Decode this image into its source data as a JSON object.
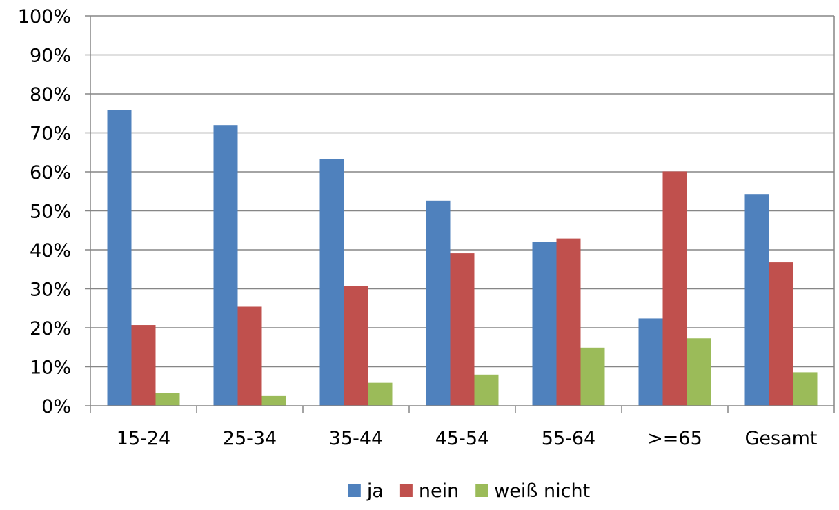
{
  "chart_data": {
    "type": "bar",
    "title": "",
    "xlabel": "",
    "ylabel": "",
    "categories": [
      "15-24",
      "25-34",
      "35-44",
      "45-54",
      "55-64",
      ">=65",
      "Gesamt"
    ],
    "series": [
      {
        "name": "ja",
        "color": "#4F81BD",
        "values": [
          75.8,
          72.0,
          63.2,
          52.6,
          42.1,
          22.4,
          54.3
        ]
      },
      {
        "name": "nein",
        "color": "#C0504D",
        "values": [
          20.7,
          25.4,
          30.7,
          39.1,
          42.9,
          60.1,
          36.8
        ]
      },
      {
        "name": "weiß nicht",
        "color": "#9BBB59",
        "values": [
          3.2,
          2.5,
          5.9,
          8.0,
          14.9,
          17.3,
          8.6
        ]
      }
    ],
    "ylim": [
      0,
      100
    ],
    "yticks": [
      "0%",
      "10%",
      "20%",
      "30%",
      "40%",
      "50%",
      "60%",
      "70%",
      "80%",
      "90%",
      "100%"
    ],
    "grid": true,
    "legend_position": "bottom"
  }
}
